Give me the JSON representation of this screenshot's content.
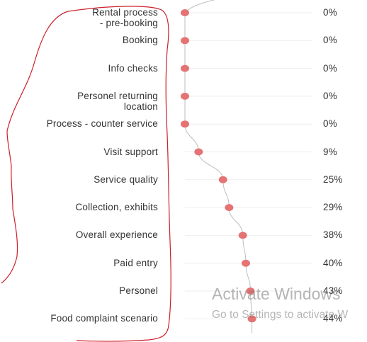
{
  "chart_data": {
    "type": "line",
    "categories": [
      "Rental process - pre-booking",
      "Booking",
      "Info checks",
      "Personel returning location",
      "Process - counter service",
      "Visit support",
      "Service quality",
      "Collection, exhibits",
      "Overall experience",
      "Paid entry",
      "Personel",
      "Food complaint scenario"
    ],
    "value_labels": [
      "0%",
      "0%",
      "0%",
      "0%",
      "0%",
      "9%",
      "25%",
      "29%",
      "38%",
      "40%",
      "43%",
      "44%"
    ],
    "values": [
      0,
      0,
      0,
      0,
      0,
      9,
      25,
      29,
      38,
      40,
      43,
      44
    ],
    "xlim": [
      0,
      100
    ],
    "orientation": "horizontal",
    "point_color": "#e57373",
    "line_color": "#bdbdbd",
    "grid": true
  },
  "annotation": {
    "color": "#cc1f2a",
    "shape": "freehand-outline"
  },
  "watermark": {
    "title": "Activate Windows",
    "subtitle": "Go to Settings to activate W"
  }
}
